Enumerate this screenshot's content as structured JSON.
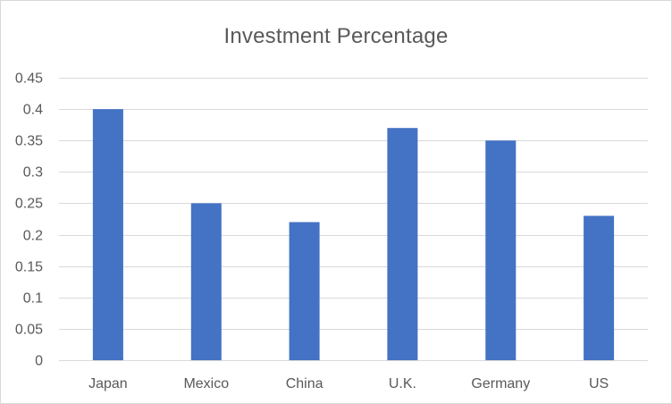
{
  "chart_data": {
    "type": "bar",
    "title": "Investment Percentage",
    "xlabel": "",
    "ylabel": "",
    "categories": [
      "Japan",
      "Mexico",
      "China",
      "U.K.",
      "Germany",
      "US"
    ],
    "values": [
      0.4,
      0.25,
      0.22,
      0.37,
      0.35,
      0.23
    ],
    "ylim": [
      0,
      0.45
    ],
    "yticks": [
      "0",
      "0.05",
      "0.1",
      "0.15",
      "0.2",
      "0.25",
      "0.3",
      "0.35",
      "0.4",
      "0.45"
    ],
    "grid": true,
    "legend": "none",
    "bar_color": "#4472C4",
    "gridline_color": "#d9d9d9",
    "text_color": "#595959"
  }
}
